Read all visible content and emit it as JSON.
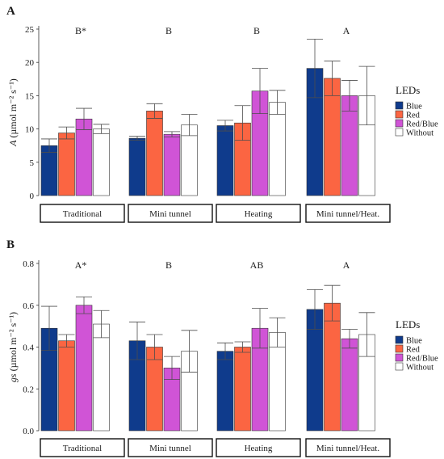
{
  "colors": {
    "Blue": "#0f3b8c",
    "Red": "#fb6542",
    "Red/Blue": "#d054d6",
    "Without": "#ffffff",
    "bar_stroke": "#333333",
    "error_bar": "#4d4d4d",
    "axis": "#333333"
  },
  "chart_data": [
    {
      "panel_label": "A",
      "type": "bar",
      "ylabel_symbol": "A",
      "ylabel_unit": "(µmol m⁻² s⁻¹)",
      "ylim": [
        0,
        25
      ],
      "yticks": [
        0,
        5,
        10,
        15,
        20,
        25
      ],
      "groups": [
        "Traditional",
        "Mini tunnel",
        "Heating",
        "Mini tunnel/Heat."
      ],
      "group_letters": [
        "B*",
        "B",
        "B",
        "A"
      ],
      "legend_title": "LEDs",
      "series": [
        {
          "name": "Blue",
          "values": [
            7.5,
            8.6,
            10.5,
            19.1
          ],
          "error": [
            1.0,
            0.3,
            0.8,
            4.4
          ]
        },
        {
          "name": "Red",
          "values": [
            9.4,
            12.7,
            10.9,
            17.6
          ],
          "error": [
            0.9,
            1.1,
            2.6,
            2.6
          ]
        },
        {
          "name": "Red/Blue",
          "values": [
            11.5,
            9.2,
            15.7,
            15.0
          ],
          "error": [
            1.6,
            0.4,
            3.4,
            2.3
          ]
        },
        {
          "name": "Without",
          "values": [
            10.0,
            10.6,
            14.0,
            15.0
          ],
          "error": [
            0.7,
            1.6,
            1.8,
            4.4
          ]
        }
      ]
    },
    {
      "panel_label": "B",
      "type": "bar",
      "ylabel_symbol": "gs",
      "ylabel_unit": "(µmol m⁻² s⁻¹)",
      "ylim": [
        0,
        0.8
      ],
      "yticks": [
        0.0,
        0.2,
        0.4,
        0.6,
        0.8
      ],
      "ytick_labels": [
        "0.0",
        "0.2",
        "0.4",
        "0.6",
        "0.8"
      ],
      "groups": [
        "Traditional",
        "Mini tunnel",
        "Heating",
        "Mini tunnel/Heat."
      ],
      "group_letters": [
        "A*",
        "B",
        "AB",
        "A"
      ],
      "legend_title": "LEDs",
      "series": [
        {
          "name": "Blue",
          "values": [
            0.49,
            0.43,
            0.38,
            0.58
          ],
          "error": [
            0.105,
            0.09,
            0.04,
            0.095
          ]
        },
        {
          "name": "Red",
          "values": [
            0.43,
            0.4,
            0.4,
            0.61
          ],
          "error": [
            0.03,
            0.06,
            0.025,
            0.085
          ]
        },
        {
          "name": "Red/Blue",
          "values": [
            0.6,
            0.3,
            0.49,
            0.44
          ],
          "error": [
            0.04,
            0.055,
            0.095,
            0.045
          ]
        },
        {
          "name": "Without",
          "values": [
            0.51,
            0.38,
            0.47,
            0.46
          ],
          "error": [
            0.065,
            0.1,
            0.07,
            0.105
          ]
        }
      ]
    }
  ]
}
